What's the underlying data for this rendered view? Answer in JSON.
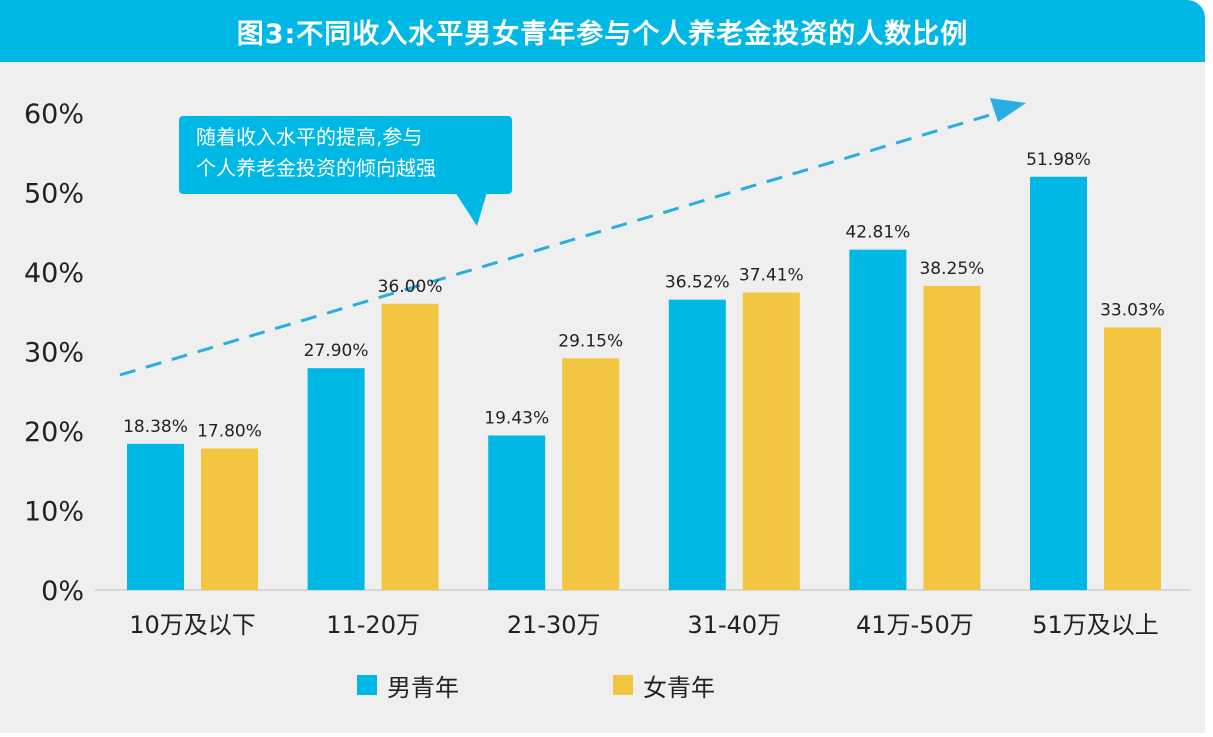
{
  "header": {
    "title": "图3:不同收入水平男女青年参与个人养老金投资的人数比例"
  },
  "callout": {
    "line1": "随着收入水平的提高,参与",
    "line2": "个人养老金投资的倾向越强"
  },
  "colors": {
    "male": "#00b8e6",
    "female": "#f2c641",
    "accent": "#00b8e6"
  },
  "chart_data": {
    "type": "bar",
    "categories": [
      "10万及以下",
      "11-20万",
      "21-30万",
      "31-40万",
      "41万-50万",
      "51万及以上"
    ],
    "series": [
      {
        "name": "男青年",
        "values": [
          18.38,
          27.9,
          19.43,
          36.52,
          42.81,
          51.98
        ],
        "labels": [
          "18.38%",
          "27.90%",
          "19.43%",
          "36.52%",
          "42.81%",
          "51.98%"
        ]
      },
      {
        "name": "女青年",
        "values": [
          17.8,
          36.0,
          29.15,
          37.41,
          38.25,
          33.03
        ],
        "labels": [
          "17.80%",
          "36.00%",
          "29.15%",
          "37.41%",
          "38.25%",
          "33.03%"
        ]
      }
    ],
    "y_ticks": [
      "0%",
      "10%",
      "20%",
      "30%",
      "40%",
      "50%",
      "60%"
    ],
    "ylim": [
      0,
      60
    ],
    "legend": "bottom-center",
    "grid": false
  }
}
